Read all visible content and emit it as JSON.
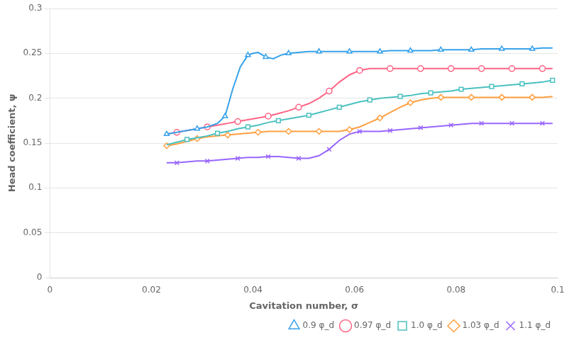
{
  "chart_data": {
    "type": "line",
    "xlabel": "Cavitation number, σ",
    "ylabel": "Head coefficient, ψ",
    "xlim": [
      0,
      0.1
    ],
    "ylim": [
      0,
      0.3
    ],
    "xticks": [
      0,
      0.02,
      0.04,
      0.06,
      0.08,
      0.1
    ],
    "yticks": [
      0,
      0.05,
      0.1,
      0.15,
      0.2,
      0.25,
      0.3
    ],
    "grid": "y",
    "legend": "lower right",
    "series": [
      {
        "name": "0.9 φ_d",
        "marker": "triangle",
        "x": [
          0.023,
          0.025,
          0.027,
          0.029,
          0.031,
          0.033,
          0.0345,
          0.036,
          0.0375,
          0.039,
          0.04,
          0.041,
          0.0425,
          0.044,
          0.0455,
          0.047,
          0.049,
          0.051,
          0.053,
          0.055,
          0.057,
          0.059,
          0.061,
          0.063,
          0.065,
          0.067,
          0.069,
          0.071,
          0.073,
          0.075,
          0.077,
          0.079,
          0.081,
          0.083,
          0.085,
          0.087,
          0.089,
          0.091,
          0.093,
          0.095,
          0.097,
          0.099
        ],
        "values": [
          0.16,
          0.162,
          0.164,
          0.166,
          0.168,
          0.172,
          0.18,
          0.21,
          0.235,
          0.248,
          0.25,
          0.251,
          0.246,
          0.244,
          0.248,
          0.25,
          0.251,
          0.252,
          0.252,
          0.252,
          0.252,
          0.252,
          0.252,
          0.252,
          0.252,
          0.253,
          0.253,
          0.253,
          0.253,
          0.253,
          0.254,
          0.254,
          0.254,
          0.254,
          0.255,
          0.255,
          0.255,
          0.255,
          0.255,
          0.255,
          0.256,
          0.256
        ]
      },
      {
        "name": "0.97 φ_d",
        "marker": "circle",
        "x": [
          0.023,
          0.025,
          0.027,
          0.029,
          0.031,
          0.033,
          0.035,
          0.037,
          0.039,
          0.041,
          0.043,
          0.045,
          0.047,
          0.049,
          0.051,
          0.053,
          0.055,
          0.057,
          0.059,
          0.061,
          0.063,
          0.065,
          0.067,
          0.069,
          0.071,
          0.073,
          0.075,
          0.077,
          0.079,
          0.081,
          0.083,
          0.085,
          0.087,
          0.089,
          0.091,
          0.093,
          0.095,
          0.097,
          0.099
        ],
        "values": [
          0.16,
          0.162,
          0.164,
          0.166,
          0.168,
          0.17,
          0.172,
          0.174,
          0.176,
          0.178,
          0.18,
          0.183,
          0.186,
          0.19,
          0.194,
          0.2,
          0.208,
          0.218,
          0.226,
          0.231,
          0.233,
          0.233,
          0.233,
          0.233,
          0.233,
          0.233,
          0.233,
          0.233,
          0.233,
          0.233,
          0.233,
          0.233,
          0.233,
          0.233,
          0.233,
          0.233,
          0.233,
          0.233,
          0.233
        ]
      },
      {
        "name": "1.0 φ_d",
        "marker": "square",
        "x": [
          0.023,
          0.025,
          0.027,
          0.029,
          0.031,
          0.033,
          0.035,
          0.037,
          0.039,
          0.041,
          0.043,
          0.045,
          0.047,
          0.049,
          0.051,
          0.053,
          0.055,
          0.057,
          0.059,
          0.061,
          0.063,
          0.065,
          0.067,
          0.069,
          0.071,
          0.073,
          0.075,
          0.077,
          0.079,
          0.081,
          0.083,
          0.085,
          0.087,
          0.089,
          0.091,
          0.093,
          0.095,
          0.097,
          0.099
        ],
        "values": [
          0.148,
          0.151,
          0.154,
          0.156,
          0.158,
          0.161,
          0.163,
          0.166,
          0.168,
          0.17,
          0.173,
          0.175,
          0.177,
          0.179,
          0.181,
          0.184,
          0.187,
          0.19,
          0.193,
          0.196,
          0.198,
          0.2,
          0.201,
          0.202,
          0.203,
          0.205,
          0.206,
          0.207,
          0.208,
          0.21,
          0.211,
          0.212,
          0.213,
          0.214,
          0.215,
          0.216,
          0.217,
          0.218,
          0.22
        ]
      },
      {
        "name": "1.03 φ_d",
        "marker": "diamond",
        "x": [
          0.023,
          0.025,
          0.027,
          0.029,
          0.031,
          0.033,
          0.035,
          0.037,
          0.039,
          0.041,
          0.043,
          0.045,
          0.047,
          0.049,
          0.051,
          0.053,
          0.055,
          0.057,
          0.059,
          0.061,
          0.063,
          0.065,
          0.067,
          0.069,
          0.071,
          0.073,
          0.075,
          0.077,
          0.079,
          0.081,
          0.083,
          0.085,
          0.087,
          0.089,
          0.091,
          0.093,
          0.095,
          0.097,
          0.099
        ],
        "values": [
          0.147,
          0.149,
          0.152,
          0.155,
          0.157,
          0.158,
          0.159,
          0.16,
          0.161,
          0.162,
          0.163,
          0.163,
          0.163,
          0.163,
          0.163,
          0.163,
          0.163,
          0.163,
          0.165,
          0.168,
          0.173,
          0.178,
          0.184,
          0.19,
          0.195,
          0.198,
          0.2,
          0.201,
          0.201,
          0.201,
          0.201,
          0.201,
          0.201,
          0.201,
          0.201,
          0.201,
          0.201,
          0.201,
          0.202
        ]
      },
      {
        "name": "1.1 φ_d",
        "marker": "x",
        "x": [
          0.023,
          0.025,
          0.027,
          0.029,
          0.031,
          0.033,
          0.035,
          0.037,
          0.039,
          0.041,
          0.043,
          0.045,
          0.047,
          0.049,
          0.051,
          0.053,
          0.055,
          0.057,
          0.059,
          0.061,
          0.063,
          0.065,
          0.067,
          0.069,
          0.071,
          0.073,
          0.075,
          0.077,
          0.079,
          0.081,
          0.083,
          0.085,
          0.087,
          0.089,
          0.091,
          0.093,
          0.095,
          0.097,
          0.099
        ],
        "values": [
          0.128,
          0.128,
          0.129,
          0.13,
          0.13,
          0.131,
          0.132,
          0.133,
          0.134,
          0.134,
          0.135,
          0.135,
          0.134,
          0.133,
          0.133,
          0.136,
          0.143,
          0.153,
          0.16,
          0.163,
          0.163,
          0.163,
          0.164,
          0.165,
          0.166,
          0.167,
          0.168,
          0.169,
          0.17,
          0.171,
          0.172,
          0.172,
          0.172,
          0.172,
          0.172,
          0.172,
          0.172,
          0.172,
          0.172
        ]
      }
    ]
  }
}
